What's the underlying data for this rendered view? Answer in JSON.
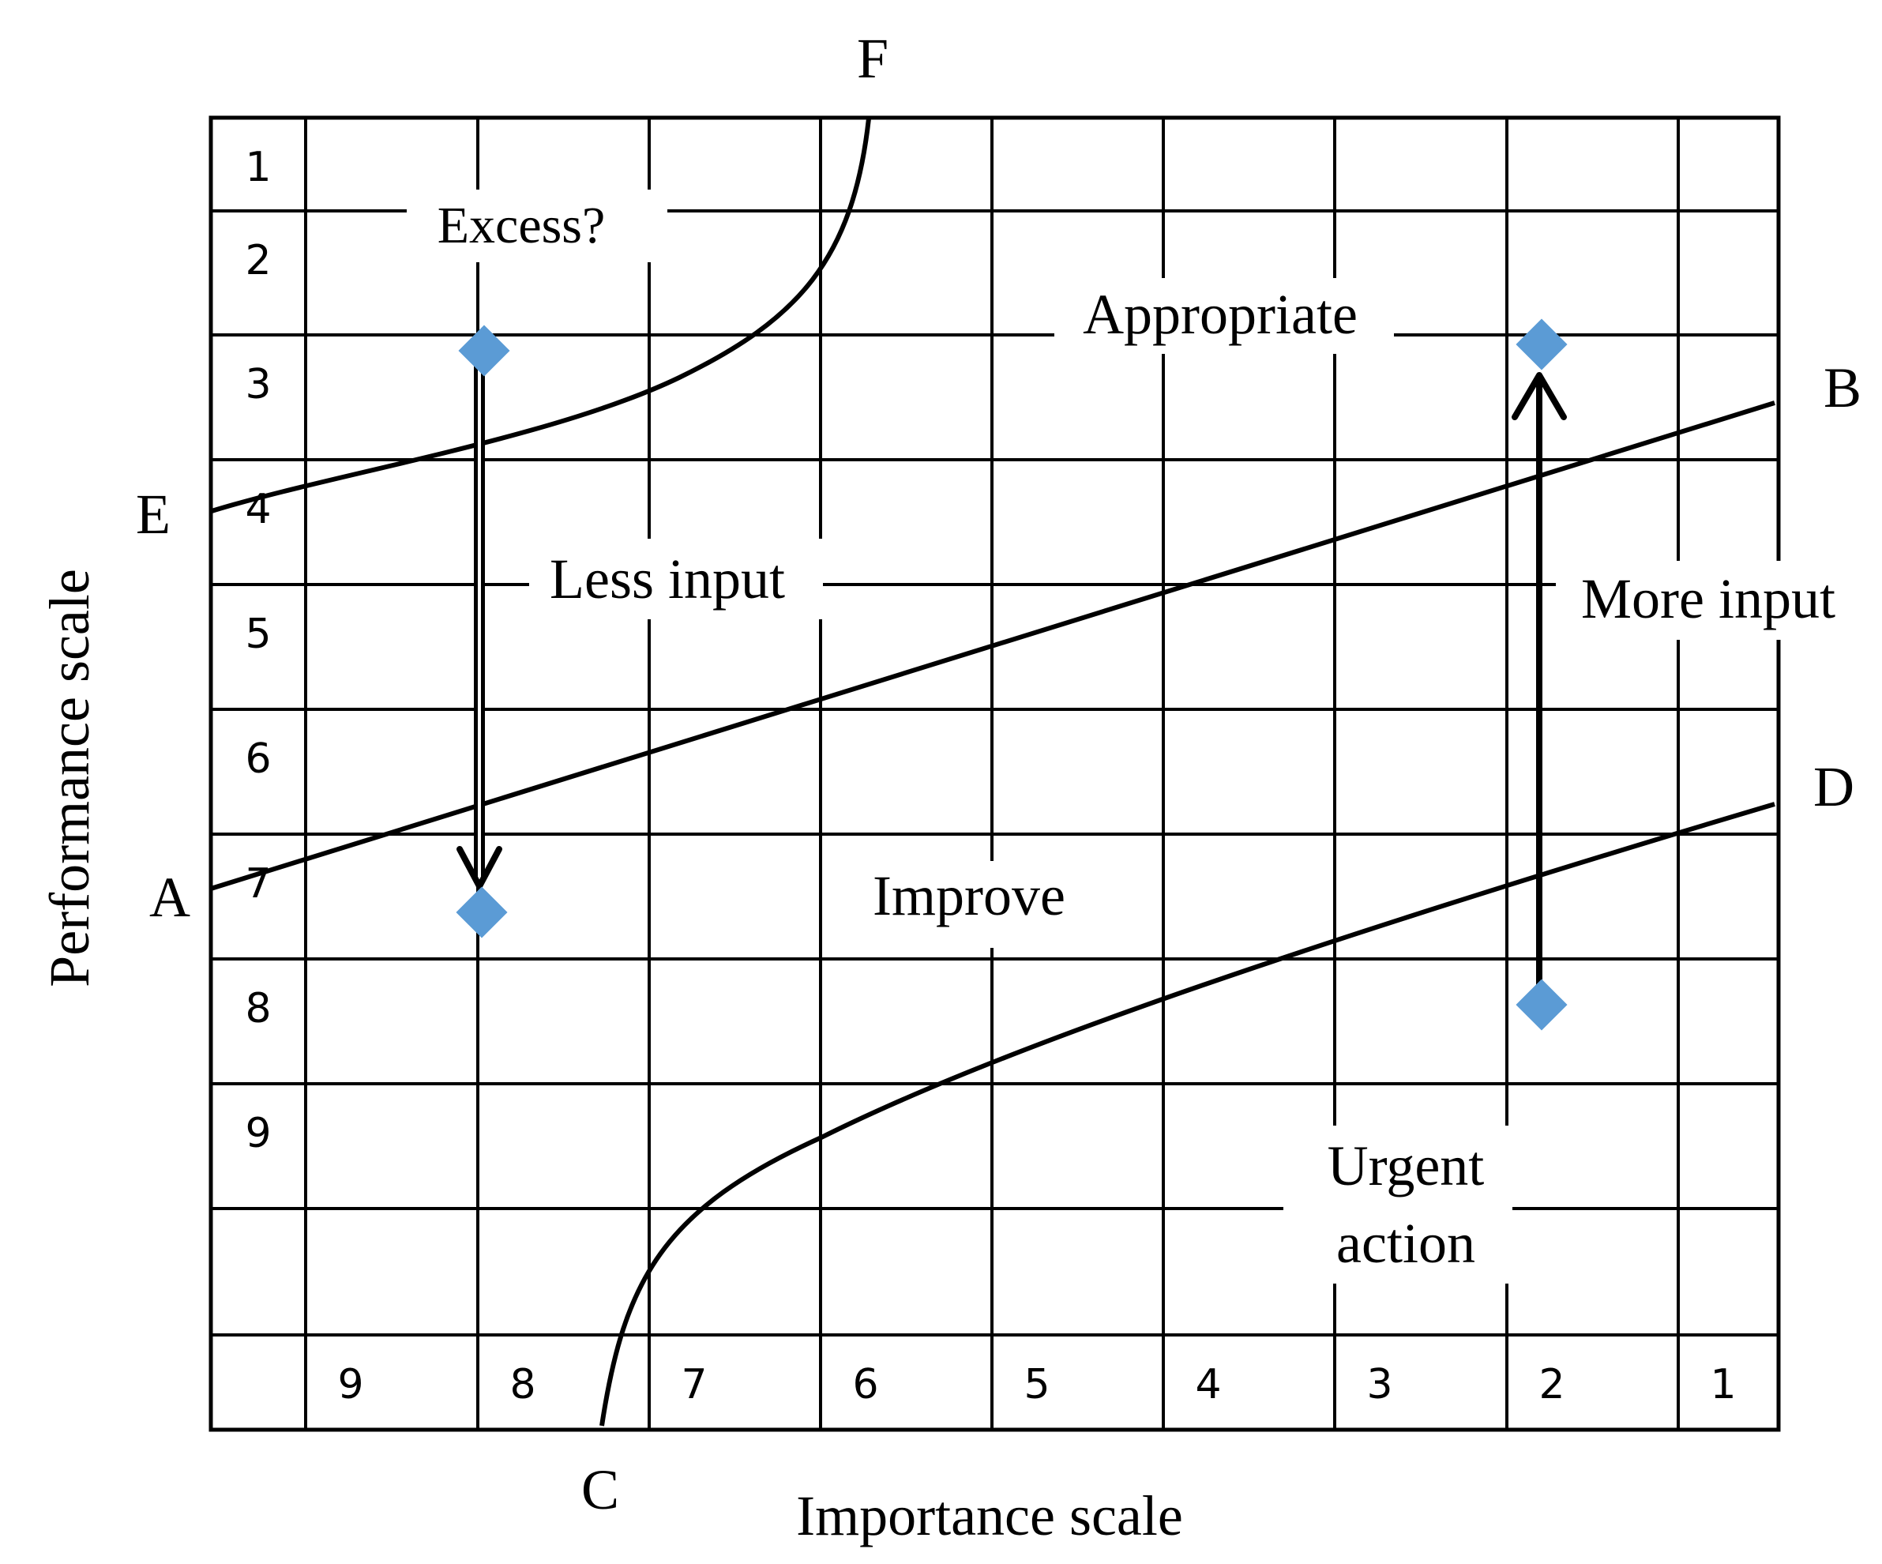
{
  "axes": {
    "y_label": "Performance scale",
    "x_label": "Importance scale"
  },
  "row_numbers": [
    "1",
    "2",
    "3",
    "4",
    "5",
    "6",
    "7",
    "8",
    "9"
  ],
  "col_numbers": [
    "9",
    "8",
    "7",
    "6",
    "5",
    "4",
    "3",
    "2",
    "1"
  ],
  "line_endpoints": {
    "A": "A",
    "B": "B",
    "C": "C",
    "D": "D",
    "E": "E",
    "F": "F"
  },
  "regions": {
    "excess": "Excess?",
    "appropriate": "Appropriate",
    "improve": "Improve",
    "urgent_line1": "Urgent",
    "urgent_line2": "action"
  },
  "arrows": {
    "less_input": "Less input",
    "more_input": "More input"
  },
  "colors": {
    "marker": "#5B9BD5",
    "line": "#000000"
  }
}
